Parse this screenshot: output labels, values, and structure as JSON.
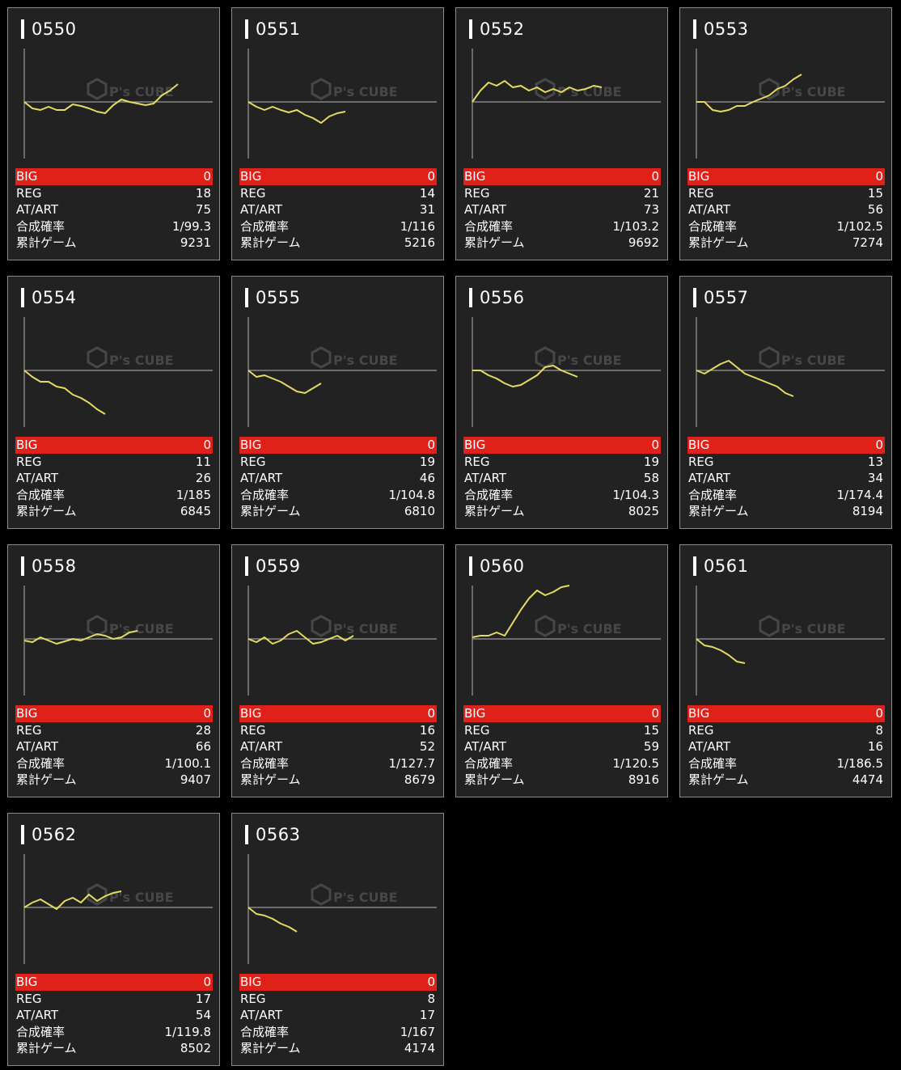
{
  "labels": {
    "big": "BIG",
    "reg": "REG",
    "at": "AT/ART",
    "rate": "合成確率",
    "games": "累計ゲーム"
  },
  "colors": {
    "background": "#000000",
    "card": "#222222",
    "big_bar": "#e0211a",
    "line": "#e5db63",
    "axis": "#9a9a9a"
  },
  "watermark": {
    "brand": "P's CUBE"
  },
  "machines": [
    {
      "id": "0550",
      "big": "0",
      "reg": "18",
      "at": "75",
      "rate": "1/99.3",
      "games": "9231",
      "trend": [
        0,
        -8,
        -10,
        -6,
        -10,
        -10,
        -3,
        -5,
        -8,
        -12,
        -14,
        -4,
        3,
        0,
        -2,
        -4,
        -2,
        8,
        14,
        22
      ]
    },
    {
      "id": "0551",
      "big": "0",
      "reg": "14",
      "at": "31",
      "rate": "1/116",
      "games": "5216",
      "trend": [
        0,
        -6,
        -10,
        -6,
        -10,
        -13,
        -10,
        -16,
        -20,
        -26,
        -18,
        -14,
        -12
      ]
    },
    {
      "id": "0552",
      "big": "0",
      "reg": "21",
      "at": "73",
      "rate": "1/103.2",
      "games": "9692",
      "trend": [
        0,
        14,
        24,
        20,
        26,
        18,
        20,
        14,
        18,
        12,
        16,
        12,
        18,
        14,
        16,
        20,
        18
      ]
    },
    {
      "id": "0553",
      "big": "0",
      "reg": "15",
      "at": "56",
      "rate": "1/102.5",
      "games": "7274",
      "trend": [
        0,
        0,
        -10,
        -12,
        -10,
        -5,
        -5,
        0,
        4,
        8,
        16,
        20,
        28,
        34
      ]
    },
    {
      "id": "0554",
      "big": "0",
      "reg": "11",
      "at": "26",
      "rate": "1/185",
      "games": "6845",
      "trend": [
        0,
        -8,
        -14,
        -14,
        -20,
        -22,
        -30,
        -34,
        -40,
        -48,
        -54
      ]
    },
    {
      "id": "0555",
      "big": "0",
      "reg": "19",
      "at": "46",
      "rate": "1/104.8",
      "games": "6810",
      "trend": [
        0,
        -8,
        -6,
        -10,
        -14,
        -20,
        -26,
        -28,
        -22,
        -16
      ]
    },
    {
      "id": "0556",
      "big": "0",
      "reg": "19",
      "at": "58",
      "rate": "1/104.3",
      "games": "8025",
      "trend": [
        0,
        0,
        -6,
        -10,
        -16,
        -20,
        -18,
        -12,
        -6,
        4,
        6,
        0,
        -4,
        -8
      ]
    },
    {
      "id": "0557",
      "big": "0",
      "reg": "13",
      "at": "34",
      "rate": "1/174.4",
      "games": "8194",
      "trend": [
        0,
        -4,
        2,
        8,
        12,
        4,
        -4,
        -8,
        -12,
        -16,
        -20,
        -28,
        -32
      ]
    },
    {
      "id": "0558",
      "big": "0",
      "reg": "28",
      "at": "66",
      "rate": "1/100.1",
      "games": "9407",
      "trend": [
        -2,
        -4,
        2,
        -2,
        -6,
        -3,
        0,
        -2,
        2,
        6,
        4,
        0,
        2,
        8,
        10
      ]
    },
    {
      "id": "0559",
      "big": "0",
      "reg": "16",
      "at": "52",
      "rate": "1/127.7",
      "games": "8679",
      "trend": [
        0,
        -4,
        2,
        -6,
        -2,
        6,
        10,
        2,
        -6,
        -4,
        0,
        4,
        -2,
        4
      ]
    },
    {
      "id": "0560",
      "big": "0",
      "reg": "15",
      "at": "59",
      "rate": "1/120.5",
      "games": "8916",
      "trend": [
        2,
        4,
        4,
        8,
        4,
        20,
        36,
        50,
        60,
        54,
        58,
        64,
        66
      ]
    },
    {
      "id": "0561",
      "big": "0",
      "reg": "8",
      "at": "16",
      "rate": "1/186.5",
      "games": "4474",
      "trend": [
        0,
        -8,
        -10,
        -14,
        -20,
        -28,
        -30
      ]
    },
    {
      "id": "0562",
      "big": "0",
      "reg": "17",
      "at": "54",
      "rate": "1/119.8",
      "games": "8502",
      "trend": [
        0,
        6,
        10,
        4,
        -2,
        8,
        12,
        6,
        16,
        8,
        14,
        18,
        20
      ]
    },
    {
      "id": "0563",
      "big": "0",
      "reg": "8",
      "at": "17",
      "rate": "1/167",
      "games": "4174",
      "trend": [
        0,
        -8,
        -10,
        -14,
        -20,
        -24,
        -30
      ]
    }
  ]
}
